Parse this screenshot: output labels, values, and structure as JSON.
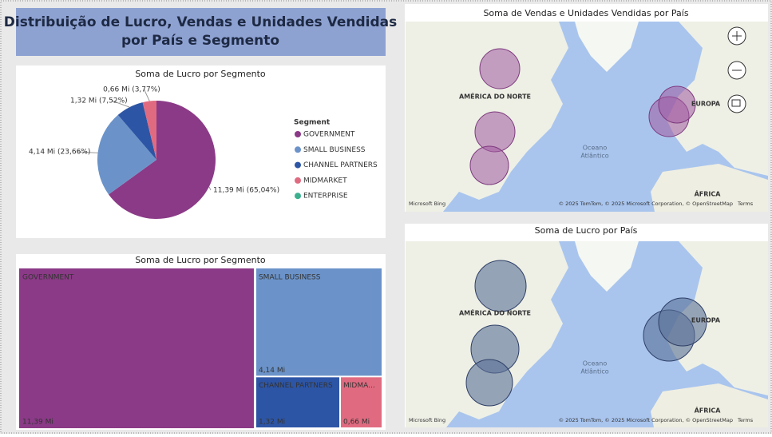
{
  "dashboard_title": [
    "Distribuição de Lucro, Vendas e Unidades Vendidas",
    "por País e Segmento"
  ],
  "chart_data": [
    {
      "type": "pie",
      "title": "Soma de Lucro por Segmento",
      "legend_title": "Segment",
      "categories": [
        "GOVERNMENT",
        "SMALL BUSINESS",
        "CHANNEL PARTNERS",
        "MIDMARKET",
        "ENTERPRISE"
      ],
      "values": [
        11.39,
        4.14,
        1.32,
        0.66,
        null
      ],
      "value_labels": [
        "11,39 Mi (65,04%)",
        "4,14 Mi (23,66%)",
        "1,32 Mi (7,52%)",
        "0,66 Mi (3,77%)",
        null
      ],
      "colors": [
        "#8b3a87",
        "#6b93c9",
        "#2d55a5",
        "#e06b80",
        "#3bb08f"
      ]
    },
    {
      "type": "treemap",
      "title": "Soma de Lucro por Segmento",
      "categories": [
        "GOVERNMENT",
        "SMALL BUSINESS",
        "CHANNEL PARTNERS",
        "MIDMA..."
      ],
      "values": [
        11.39,
        4.14,
        1.32,
        0.66
      ],
      "value_labels": [
        "11,39 Mi",
        "4,14 Mi",
        "1,32 Mi",
        "0,66 Mi"
      ],
      "colors": [
        "#8b3a87",
        "#6b93c9",
        "#2d55a5",
        "#e06b80"
      ]
    }
  ],
  "maps": [
    {
      "title": "Soma de Vendas e Unidades Vendidas por País",
      "labels": [
        "AMÉRICA DO NORTE",
        "EUROPA",
        "Oceano",
        "Atlântico",
        "ÁFRICA"
      ],
      "attribution": "© 2025 TomTom, © 2025 Microsoft Corporation, © OpenStreetMap",
      "terms": "Terms",
      "logo": "Microsoft Bing"
    },
    {
      "title": "Soma de Lucro por País",
      "labels": [
        "AMÉRICA DO NORTE",
        "EUROPA",
        "Oceano",
        "Atlântico",
        "ÁFRICA"
      ],
      "attribution": "© 2025 TomTom, © 2025 Microsoft Corporation, © OpenStreetMap",
      "terms": "Terms",
      "logo": "Microsoft Bing"
    }
  ]
}
